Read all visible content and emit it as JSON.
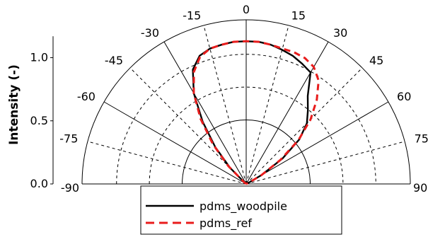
{
  "chart_data": {
    "type": "line",
    "coordinate_system": "polar-half",
    "angle_unit": "degrees",
    "angle_range": [
      -90,
      90
    ],
    "radius_range": [
      0,
      1.3
    ],
    "ylabel": "Intensity (-)",
    "radial_ticks": [
      {
        "value": 0.0,
        "label": "0.0"
      },
      {
        "value": 0.5,
        "label": "0.5"
      },
      {
        "value": 1.0,
        "label": "1.0"
      }
    ],
    "angle_ticks": [
      {
        "value": -90,
        "label": "-90"
      },
      {
        "value": -75,
        "label": "-75"
      },
      {
        "value": -60,
        "label": "-60"
      },
      {
        "value": -45,
        "label": "-45"
      },
      {
        "value": -30,
        "label": "-30"
      },
      {
        "value": -15,
        "label": "-15"
      },
      {
        "value": 0,
        "label": "0"
      },
      {
        "value": 15,
        "label": "15"
      },
      {
        "value": 30,
        "label": "30"
      },
      {
        "value": 45,
        "label": "45"
      },
      {
        "value": 60,
        "label": "60"
      },
      {
        "value": 75,
        "label": "75"
      },
      {
        "value": 90,
        "label": "90"
      }
    ],
    "legend_position": "bottom",
    "grid": true,
    "series": [
      {
        "name": "pdms_woodpile",
        "color": "#000000",
        "style": "solid",
        "points": [
          {
            "angle": -50,
            "r": 0.02
          },
          {
            "angle": -45,
            "r": 0.18
          },
          {
            "angle": -40,
            "r": 0.38
          },
          {
            "angle": -35,
            "r": 0.6
          },
          {
            "angle": -30,
            "r": 0.83
          },
          {
            "angle": -25,
            "r": 1.0
          },
          {
            "angle": -20,
            "r": 1.08
          },
          {
            "angle": -15,
            "r": 1.11
          },
          {
            "angle": -10,
            "r": 1.12
          },
          {
            "angle": -5,
            "r": 1.13
          },
          {
            "angle": 0,
            "r": 1.13
          },
          {
            "angle": 5,
            "r": 1.13
          },
          {
            "angle": 10,
            "r": 1.12
          },
          {
            "angle": 15,
            "r": 1.1
          },
          {
            "angle": 20,
            "r": 1.08
          },
          {
            "angle": 25,
            "r": 1.05
          },
          {
            "angle": 30,
            "r": 1.02
          },
          {
            "angle": 35,
            "r": 0.85
          },
          {
            "angle": 40,
            "r": 0.76
          },
          {
            "angle": 45,
            "r": 0.68
          },
          {
            "angle": 50,
            "r": 0.55
          },
          {
            "angle": 55,
            "r": 0.35
          },
          {
            "angle": 60,
            "r": 0.14
          },
          {
            "angle": 65,
            "r": 0.02
          }
        ]
      },
      {
        "name": "pdms_ref",
        "color": "#e81c1c",
        "style": "dashed",
        "points": [
          {
            "angle": -50,
            "r": 0.02
          },
          {
            "angle": -45,
            "r": 0.2
          },
          {
            "angle": -40,
            "r": 0.41
          },
          {
            "angle": -35,
            "r": 0.63
          },
          {
            "angle": -30,
            "r": 0.83
          },
          {
            "angle": -25,
            "r": 0.98
          },
          {
            "angle": -20,
            "r": 1.07
          },
          {
            "angle": -15,
            "r": 1.11
          },
          {
            "angle": -10,
            "r": 1.12
          },
          {
            "angle": -5,
            "r": 1.13
          },
          {
            "angle": 0,
            "r": 1.13
          },
          {
            "angle": 5,
            "r": 1.13
          },
          {
            "angle": 10,
            "r": 1.12
          },
          {
            "angle": 15,
            "r": 1.11
          },
          {
            "angle": 20,
            "r": 1.11
          },
          {
            "angle": 25,
            "r": 1.1
          },
          {
            "angle": 30,
            "r": 1.07
          },
          {
            "angle": 35,
            "r": 1.0
          },
          {
            "angle": 40,
            "r": 0.87
          },
          {
            "angle": 45,
            "r": 0.72
          },
          {
            "angle": 50,
            "r": 0.54
          },
          {
            "angle": 55,
            "r": 0.33
          },
          {
            "angle": 60,
            "r": 0.14
          },
          {
            "angle": 65,
            "r": 0.02
          }
        ]
      }
    ]
  }
}
